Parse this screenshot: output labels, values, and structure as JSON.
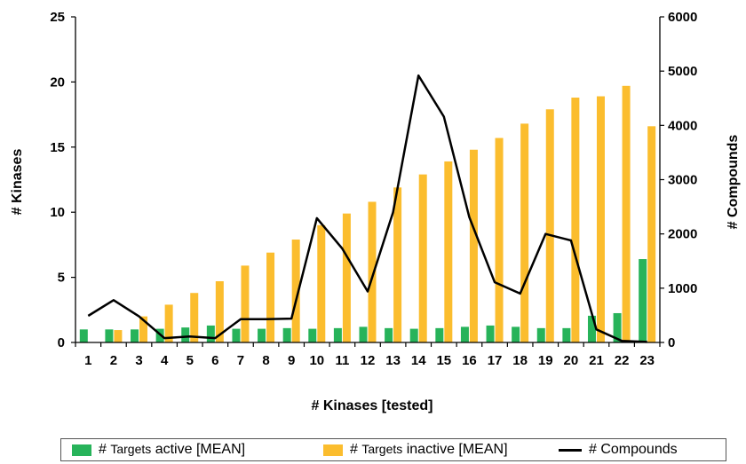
{
  "chart_data": {
    "type": "bar",
    "categories": [
      "1",
      "2",
      "3",
      "4",
      "5",
      "6",
      "7",
      "8",
      "9",
      "10",
      "11",
      "12",
      "13",
      "14",
      "15",
      "16",
      "17",
      "18",
      "19",
      "20",
      "21",
      "22",
      "23"
    ],
    "series": [
      {
        "name": "# Targets active [MEAN]",
        "type": "bar",
        "axis": "left",
        "color": "#27b35a",
        "values": [
          1.0,
          1.0,
          1.0,
          1.05,
          1.15,
          1.3,
          1.05,
          1.05,
          1.1,
          1.05,
          1.1,
          1.2,
          1.1,
          1.05,
          1.1,
          1.2,
          1.3,
          1.2,
          1.1,
          1.1,
          2.05,
          2.25,
          6.4
        ]
      },
      {
        "name": "# Targets inactive [MEAN]",
        "type": "bar",
        "axis": "left",
        "color": "#fbbd2e",
        "values": [
          0,
          0.95,
          2.0,
          2.9,
          3.8,
          4.7,
          5.9,
          6.9,
          7.9,
          9.0,
          9.9,
          10.8,
          11.9,
          12.9,
          13.9,
          14.8,
          15.7,
          16.8,
          17.9,
          18.8,
          18.9,
          19.7,
          16.6
        ]
      },
      {
        "name": "# Compounds",
        "type": "line",
        "axis": "right",
        "color": "#000000",
        "values": [
          490,
          780,
          480,
          80,
          110,
          80,
          430,
          430,
          440,
          2290,
          1730,
          940,
          2400,
          4920,
          4160,
          2310,
          1110,
          900,
          2000,
          1880,
          240,
          30,
          10
        ]
      }
    ],
    "xlabel": "# Kinases [tested]",
    "ylabel": "# Kinases",
    "y2label": "# Compounds",
    "ylim": [
      0,
      25
    ],
    "y2lim": [
      0,
      6000
    ],
    "yticks": [
      0,
      5,
      10,
      15,
      20,
      25
    ],
    "y2ticks": [
      0,
      1000,
      2000,
      3000,
      4000,
      5000,
      6000
    ],
    "grid": false,
    "legend": "bottom",
    "legend_labels": {
      "active_prefix": "# ",
      "active_small": "Targets",
      "active_suffix": " active [MEAN]",
      "inactive_prefix": "# ",
      "inactive_small": "Targets",
      "inactive_suffix": " inactive [MEAN]",
      "compounds": "# Compounds"
    }
  }
}
